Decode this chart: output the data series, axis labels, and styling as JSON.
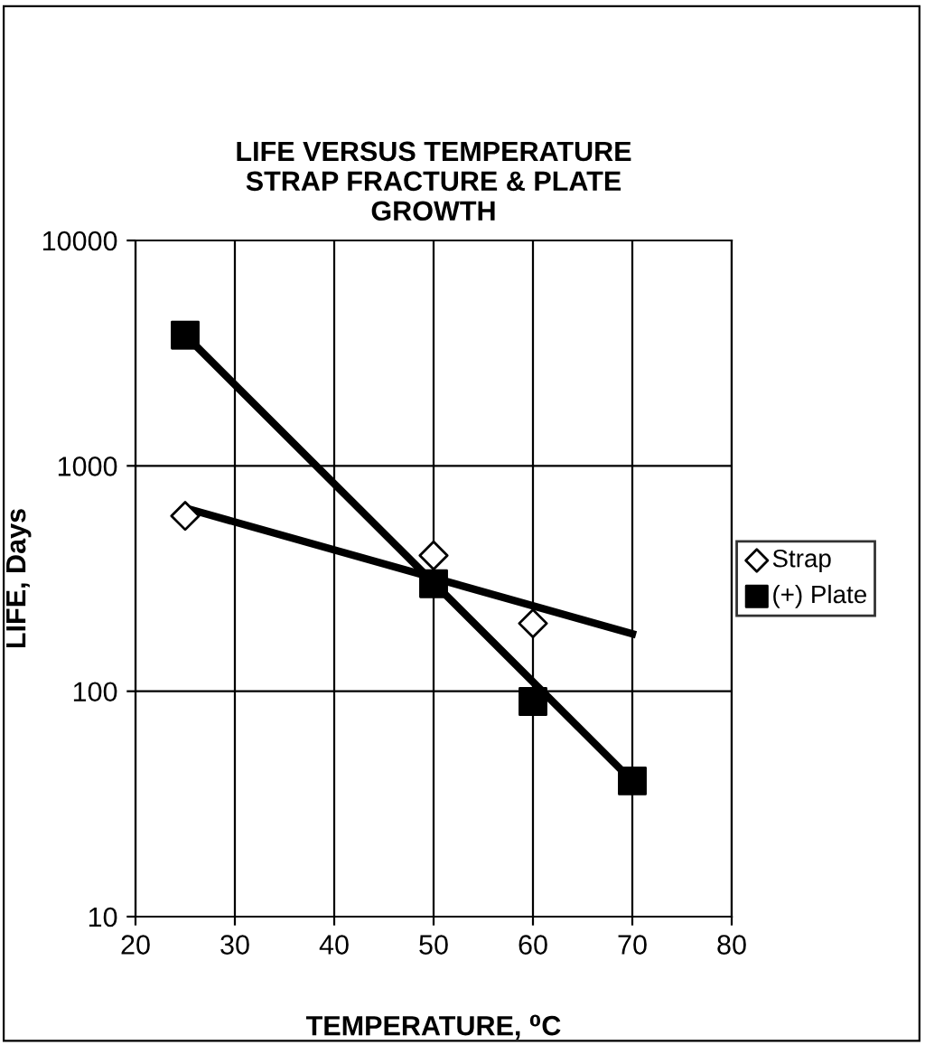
{
  "chart_data": {
    "type": "scatter",
    "title": "LIFE VERSUS TEMPERATURE\nSTRAP FRACTURE & PLATE\nGROWTH",
    "xlabel": "TEMPERATURE, ⁰C",
    "ylabel": "LIFE, Days",
    "log": "y",
    "xlim": [
      20,
      80
    ],
    "xticks": [
      20,
      30,
      40,
      50,
      60,
      70,
      80
    ],
    "ylim": [
      10,
      10000
    ],
    "yticks": [
      10,
      100,
      1000,
      10000
    ],
    "grid": true,
    "legend": "right",
    "series": [
      {
        "name": "Strap",
        "marker": "diamond",
        "color": "#000000",
        "x": [
          25,
          50,
          60
        ],
        "values": [
          600,
          400,
          200
        ]
      },
      {
        "name": "(+) Plate",
        "marker": "square",
        "color": "#000000",
        "x": [
          25,
          50,
          60,
          70
        ],
        "values": [
          3800,
          300,
          90,
          40
        ]
      },
      {
        "type": "line",
        "marker": "none",
        "color": "#000000",
        "x": [
          25,
          70
        ],
        "values": [
          650,
          180
        ]
      },
      {
        "type": "line",
        "marker": "none",
        "color": "#000000",
        "x": [
          25,
          70
        ],
        "values": [
          3800,
          40
        ]
      }
    ]
  }
}
